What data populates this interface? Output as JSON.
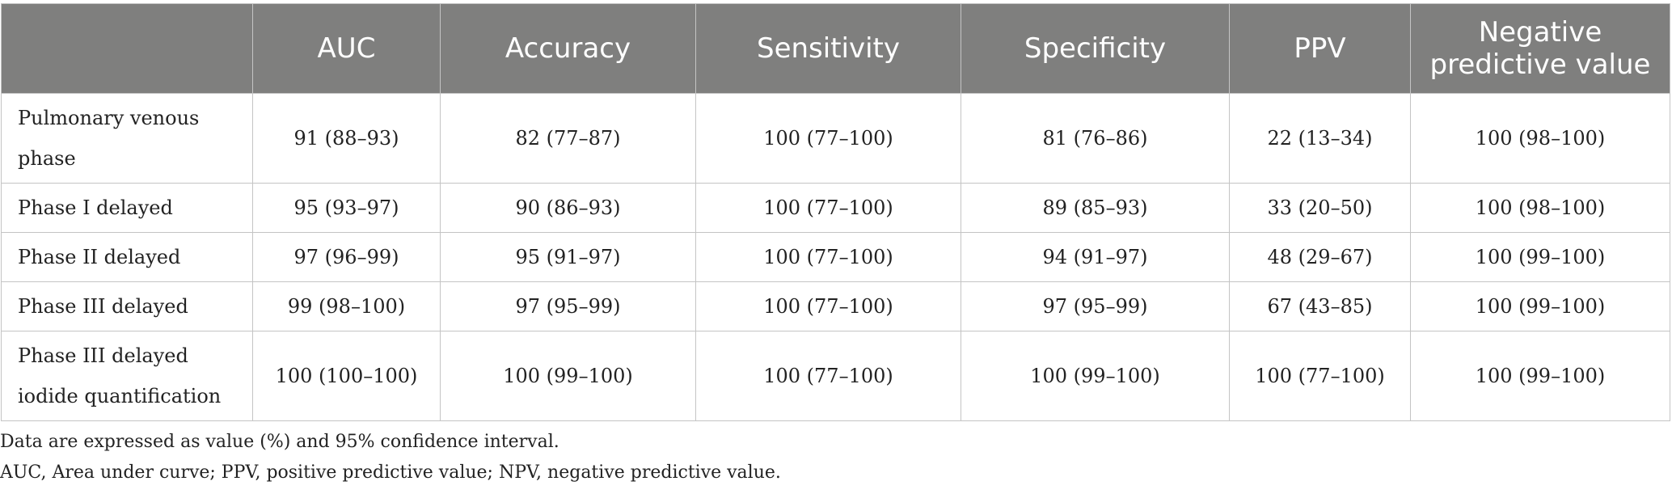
{
  "table": {
    "headers": [
      "",
      "AUC",
      "Accuracy",
      "Sensitivity",
      "Specificity",
      "PPV",
      "Negative predictive value"
    ],
    "rows": [
      {
        "label": "Pulmonary venous phase",
        "cells": [
          "91 (88–93)",
          "82 (77–87)",
          "100 (77–100)",
          "81 (76–86)",
          "22 (13–34)",
          "100 (98–100)"
        ]
      },
      {
        "label": "Phase I delayed",
        "cells": [
          "95 (93–97)",
          "90 (86–93)",
          "100 (77–100)",
          "89 (85–93)",
          "33 (20–50)",
          "100 (98–100)"
        ]
      },
      {
        "label": "Phase II delayed",
        "cells": [
          "97 (96–99)",
          "95 (91–97)",
          "100 (77–100)",
          "94 (91–97)",
          "48 (29–67)",
          "100 (99–100)"
        ]
      },
      {
        "label": "Phase III delayed",
        "cells": [
          "99 (98–100)",
          "97 (95–99)",
          "100 (77–100)",
          "97 (95–99)",
          "67 (43–85)",
          "100 (99–100)"
        ]
      },
      {
        "label": "Phase III delayed iodide quantification",
        "cells": [
          "100 (100–100)",
          "100 (99–100)",
          "100 (77–100)",
          "100 (99–100)",
          "100 (77–100)",
          "100 (99–100)"
        ]
      }
    ]
  },
  "footnotes": [
    "Data are expressed as value (%) and 95% confidence interval.",
    "AUC, Area under curve; PPV, positive predictive value; NPV, negative predictive value."
  ]
}
